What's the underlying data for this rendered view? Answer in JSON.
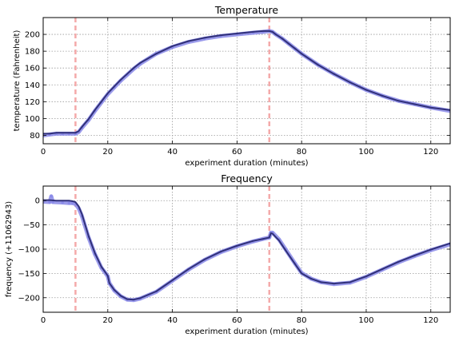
{
  "chart_data": [
    {
      "type": "line",
      "title": "Temperature",
      "xlabel": "experiment duration (minutes)",
      "ylabel": "temperature (Fahrenheit)",
      "xlim": [
        0,
        126
      ],
      "ylim": [
        70,
        220
      ],
      "xticks": [
        0,
        20,
        40,
        60,
        80,
        100,
        120
      ],
      "yticks": [
        80,
        100,
        120,
        140,
        160,
        180,
        200
      ],
      "grid": true,
      "markers_x": [
        10,
        70
      ],
      "series": [
        {
          "role": "raw",
          "color": "#8a8ae8",
          "x": [
            0,
            2,
            4,
            6,
            8,
            10,
            11,
            12,
            14,
            16,
            18,
            20,
            22,
            24,
            26,
            28,
            30,
            35,
            40,
            45,
            50,
            55,
            60,
            65,
            68,
            70,
            71,
            72,
            74,
            76,
            78,
            80,
            85,
            90,
            95,
            100,
            105,
            110,
            115,
            120,
            126
          ],
          "y": [
            80,
            81,
            82,
            82,
            82,
            82,
            84,
            89,
            98,
            109,
            119,
            129,
            137,
            145,
            152,
            159,
            165,
            177,
            185,
            191,
            195,
            198,
            200,
            202,
            203,
            204,
            203,
            200,
            195,
            189,
            183,
            177,
            164,
            153,
            143,
            134,
            127,
            121,
            117,
            113,
            109
          ]
        },
        {
          "role": "fit",
          "color": "#30307a",
          "x": [
            0,
            2,
            4,
            6,
            8,
            10,
            11,
            12,
            14,
            16,
            18,
            20,
            22,
            24,
            26,
            28,
            30,
            35,
            40,
            45,
            50,
            55,
            60,
            65,
            68,
            70,
            71,
            72,
            74,
            76,
            78,
            80,
            85,
            90,
            95,
            100,
            105,
            110,
            115,
            120,
            126
          ],
          "y": [
            82,
            82,
            83,
            83,
            83,
            83,
            85,
            90,
            99,
            110,
            120,
            130,
            138,
            146,
            153,
            160,
            166,
            177,
            186,
            192,
            196,
            199,
            201,
            203,
            204,
            204,
            203,
            200,
            195,
            189,
            183,
            177,
            164,
            153,
            143,
            134,
            127,
            121,
            117,
            113,
            110
          ]
        }
      ]
    },
    {
      "type": "line",
      "title": "Frequency",
      "xlabel": "experiment duration (minutes)",
      "ylabel": "frequency (+11062943)",
      "xlim": [
        0,
        126
      ],
      "ylim": [
        -230,
        30
      ],
      "xticks": [
        0,
        20,
        40,
        60,
        80,
        100,
        120
      ],
      "yticks": [
        0,
        -50,
        -100,
        -150,
        -200
      ],
      "grid": true,
      "markers_x": [
        10,
        70
      ],
      "series": [
        {
          "role": "raw",
          "color": "#8a8ae8",
          "x": [
            0,
            2,
            2.5,
            3,
            6,
            8,
            9,
            10,
            11,
            12,
            14,
            16,
            18,
            20,
            20.5,
            22,
            24,
            26,
            28,
            30,
            35,
            40,
            45,
            50,
            55,
            60,
            65,
            68,
            70,
            70.5,
            71,
            73,
            75,
            78,
            80,
            83,
            86,
            90,
            95,
            100,
            105,
            110,
            115,
            120,
            126
          ],
          "y": [
            -2,
            -3,
            9,
            -3,
            -4,
            -5,
            -5,
            -7,
            -16,
            -32,
            -75,
            -110,
            -138,
            -156,
            -170,
            -185,
            -197,
            -204,
            -205,
            -202,
            -188,
            -165,
            -142,
            -122,
            -106,
            -94,
            -84,
            -79,
            -76,
            -66,
            -66,
            -80,
            -100,
            -130,
            -149,
            -161,
            -168,
            -172,
            -169,
            -157,
            -142,
            -127,
            -114,
            -102,
            -90
          ]
        },
        {
          "role": "fit",
          "color": "#30307a",
          "x": [
            0,
            2,
            4,
            6,
            8,
            9,
            10,
            11,
            12,
            14,
            16,
            18,
            20,
            20.5,
            22,
            24,
            26,
            28,
            30,
            35,
            40,
            45,
            50,
            55,
            60,
            65,
            68,
            70,
            70.5,
            71,
            73,
            75,
            78,
            80,
            83,
            86,
            90,
            95,
            100,
            105,
            110,
            115,
            120,
            126
          ],
          "y": [
            1,
            1,
            0,
            0,
            0,
            -1,
            -3,
            -12,
            -28,
            -72,
            -108,
            -136,
            -155,
            -170,
            -184,
            -196,
            -203,
            -204,
            -201,
            -187,
            -164,
            -141,
            -121,
            -105,
            -93,
            -83,
            -79,
            -76,
            -67,
            -68,
            -82,
            -102,
            -131,
            -150,
            -161,
            -168,
            -171,
            -168,
            -156,
            -141,
            -126,
            -113,
            -101,
            -88
          ]
        }
      ]
    }
  ]
}
